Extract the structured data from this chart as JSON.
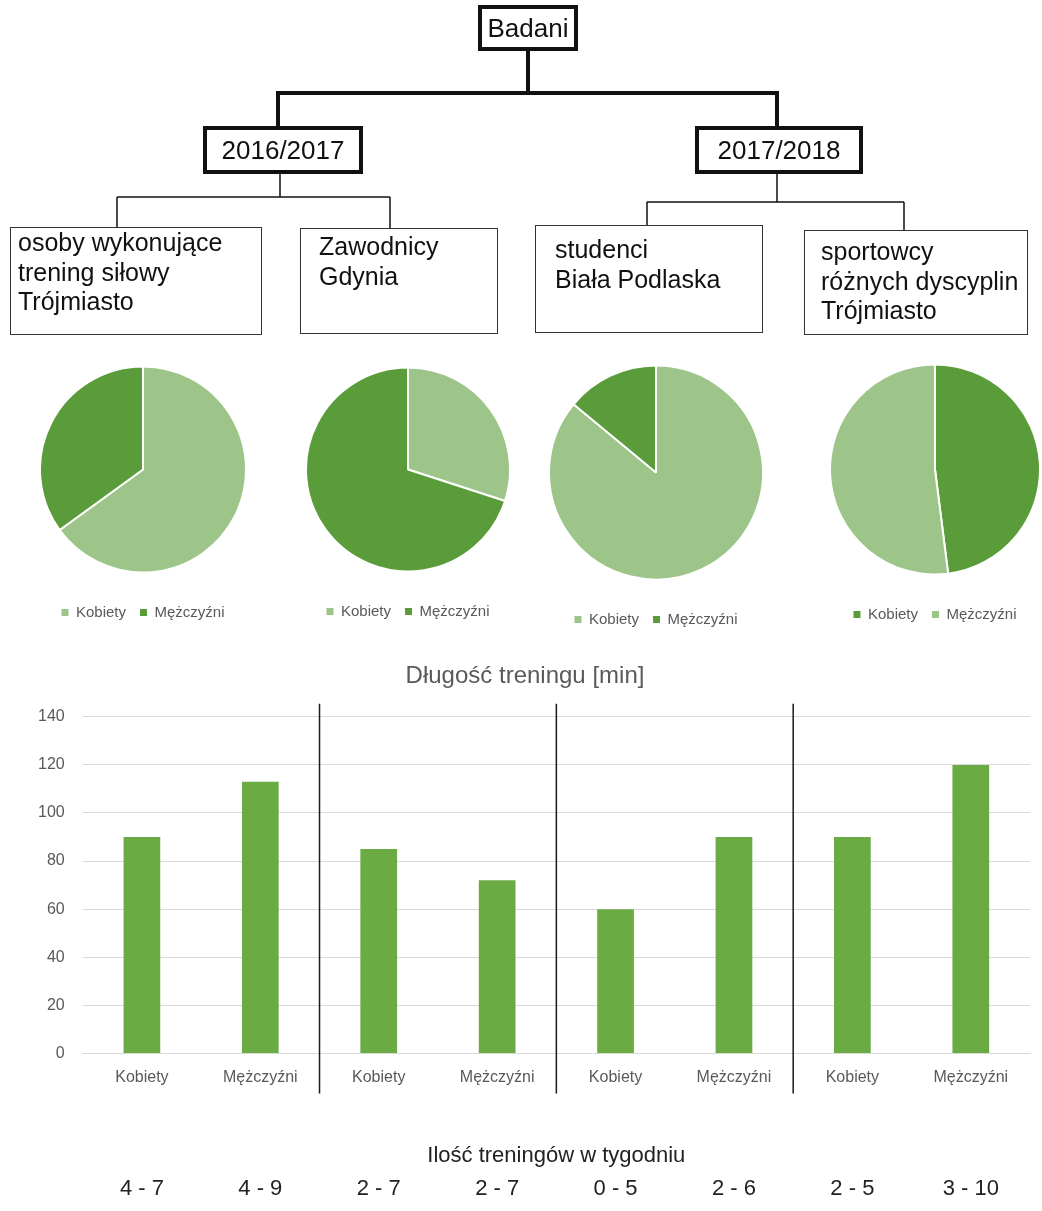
{
  "chart_data": [
    {
      "type": "other",
      "title": "Badani",
      "annotations": [
        "2016/2017",
        "2017/2018"
      ]
    },
    {
      "type": "pie",
      "title": "osoby wykonujące\ntrening siłowy\nTrójmiasto",
      "categories": [
        "Kobiety",
        "Mężczyźni"
      ],
      "values": [
        65,
        35
      ],
      "colors": [
        "#9dc589",
        "#5a9b3a"
      ],
      "legend": "bottom"
    },
    {
      "type": "pie",
      "title": "Zawodnicy\nGdynia",
      "categories": [
        "Kobiety",
        "Mężczyźni"
      ],
      "values": [
        30,
        70
      ],
      "colors": [
        "#9dc589",
        "#5a9b3a"
      ],
      "legend": "bottom"
    },
    {
      "type": "pie",
      "title": "studenci\nBiała Podlaska",
      "categories": [
        "Kobiety",
        "Mężczyźni"
      ],
      "values": [
        86,
        14
      ],
      "colors": [
        "#9dc589",
        "#5a9b3a"
      ],
      "legend": "bottom"
    },
    {
      "type": "pie",
      "title": "sportowcy\nróżnych dyscyplin\nTrójmiasto",
      "categories": [
        "Kobiety",
        "Mężczyźni"
      ],
      "values": [
        48,
        52
      ],
      "colors": [
        "#5a9b3a",
        "#9dc589"
      ],
      "legend": "bottom"
    },
    {
      "type": "bar",
      "title": "Długość treningu [min]",
      "xlabel": "Ilość treningów w tygodniu",
      "categories": [
        "Kobiety",
        "Mężczyźni",
        "Kobiety",
        "Mężczyźni",
        "Kobiety",
        "Mężczyźni",
        "Kobiety",
        "Mężczyźni"
      ],
      "values": [
        90,
        113,
        85,
        72,
        60,
        90,
        90,
        120
      ],
      "color": "#6aab44",
      "ylim": [
        0,
        140
      ],
      "yticks": [
        0,
        20,
        40,
        60,
        80,
        100,
        120,
        140
      ],
      "grid": "y",
      "annotations": [
        "4 - 7",
        "4 - 9",
        "2 - 7",
        "2 - 7",
        "0 - 5",
        "2 - 6",
        "2 - 5",
        "3 - 10"
      ]
    }
  ]
}
